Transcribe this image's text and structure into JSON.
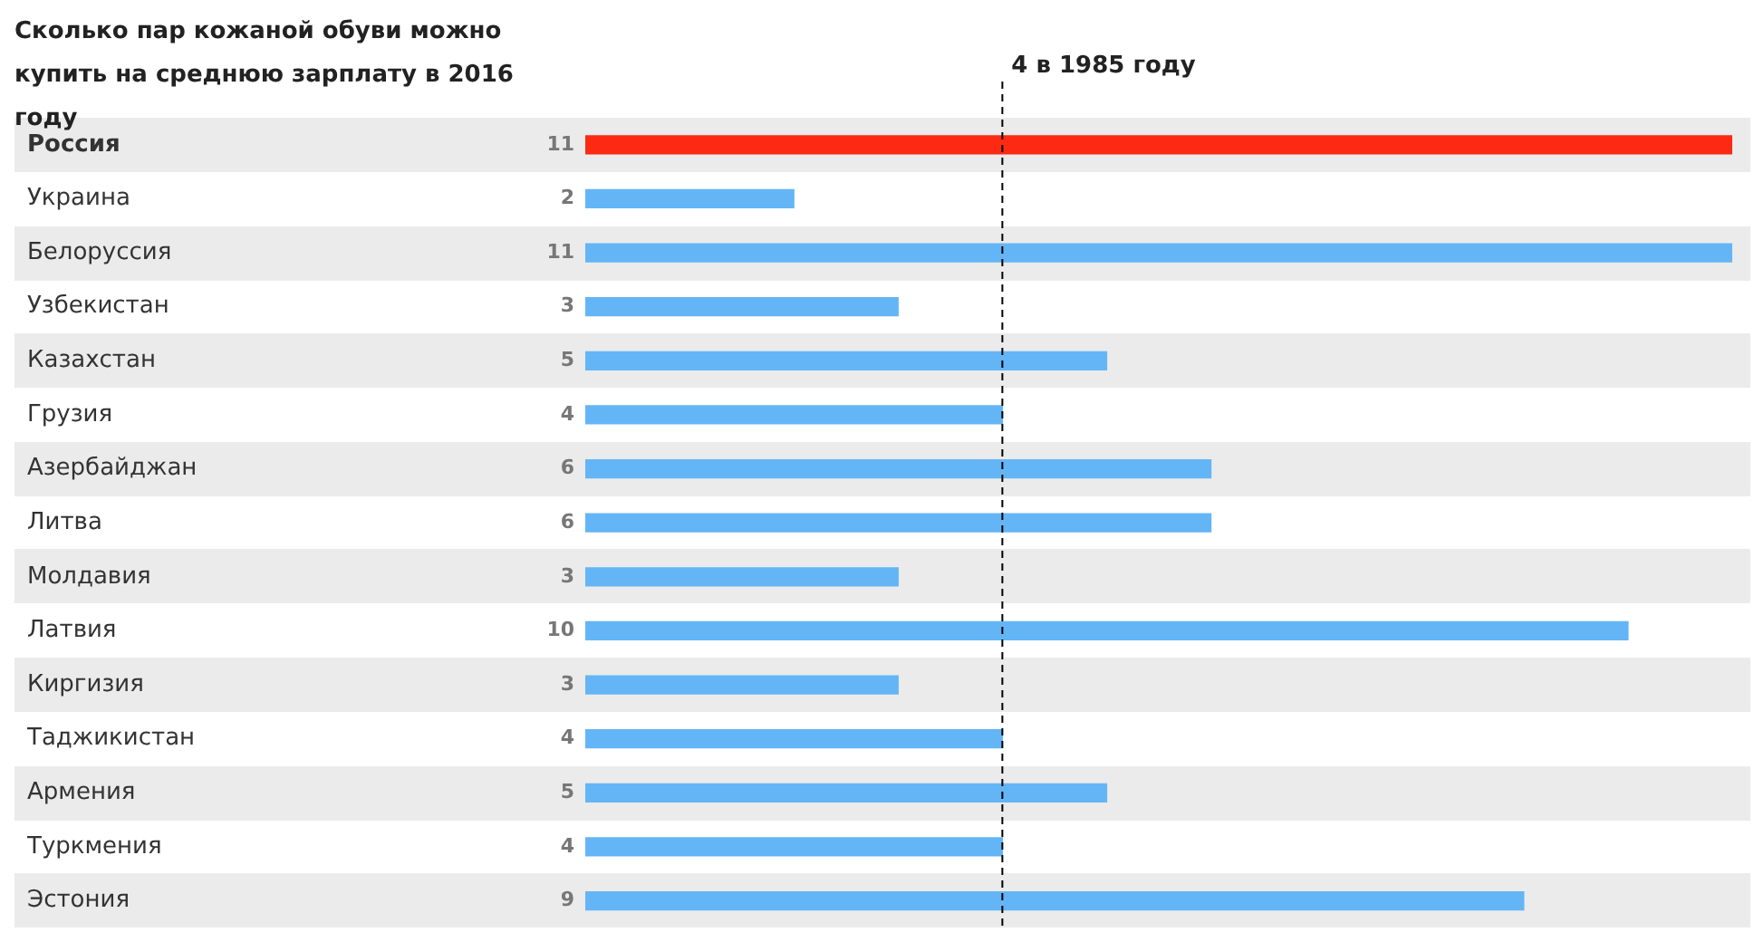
{
  "chart_data": {
    "type": "bar",
    "orientation": "horizontal",
    "title": "Сколько пар кожаной обуви можно купить на среднюю зарплату в 2016 году",
    "categories": [
      "Россия",
      "Украина",
      "Белоруссия",
      "Узбекистан",
      "Казахстан",
      "Грузия",
      "Азербайджан",
      "Литва",
      "Молдавия",
      "Латвия",
      "Киргизия",
      "Таджикистан",
      "Армения",
      "Туркмения",
      "Эстония"
    ],
    "values": [
      11,
      2,
      11,
      3,
      5,
      4,
      6,
      6,
      3,
      10,
      3,
      4,
      5,
      4,
      9
    ],
    "colors": [
      "#fc2a12",
      "#64b5f6",
      "#64b5f6",
      "#64b5f6",
      "#64b5f6",
      "#64b5f6",
      "#64b5f6",
      "#64b5f6",
      "#64b5f6",
      "#64b5f6",
      "#64b5f6",
      "#64b5f6",
      "#64b5f6",
      "#64b5f6",
      "#64b5f6"
    ],
    "xlim": [
      0,
      11
    ],
    "tick_labels": "y",
    "grid": false,
    "legend": false,
    "data_labels": true,
    "ref_lines": [
      {
        "axis": "x",
        "value": 4,
        "label": "4 в 1985 году",
        "color": "#000000",
        "line_style": "dashed"
      }
    ]
  }
}
